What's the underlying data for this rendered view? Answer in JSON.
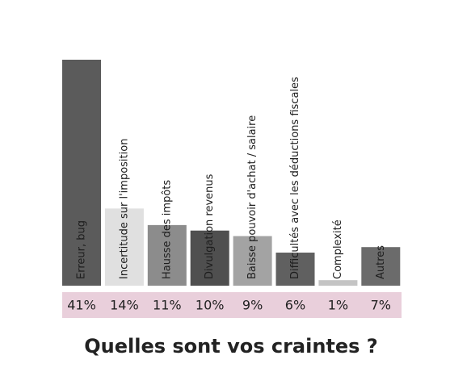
{
  "chart_data": {
    "type": "bar",
    "title": "Quelles sont vos craintes ?",
    "categories": [
      "Erreur, bug",
      "Incertitude sur l'imposition",
      "Hausse des impôts",
      "Divulgation revenus",
      "Baisse pouvoir d'achat / salaire",
      "Difficultés avec les déductions fiscales",
      "Complexité",
      "Autres"
    ],
    "values": [
      41,
      14,
      11,
      10,
      9,
      6,
      1,
      7
    ],
    "value_labels": [
      "41%",
      "14%",
      "11%",
      "10%",
      "9%",
      "6%",
      "1%",
      "7%"
    ],
    "colors": [
      "#5b5b5b",
      "#e0e0e0",
      "#8c8c8c",
      "#4f4f4f",
      "#a3a3a3",
      "#606060",
      "#c4c4c4",
      "#6b6b6b"
    ]
  }
}
